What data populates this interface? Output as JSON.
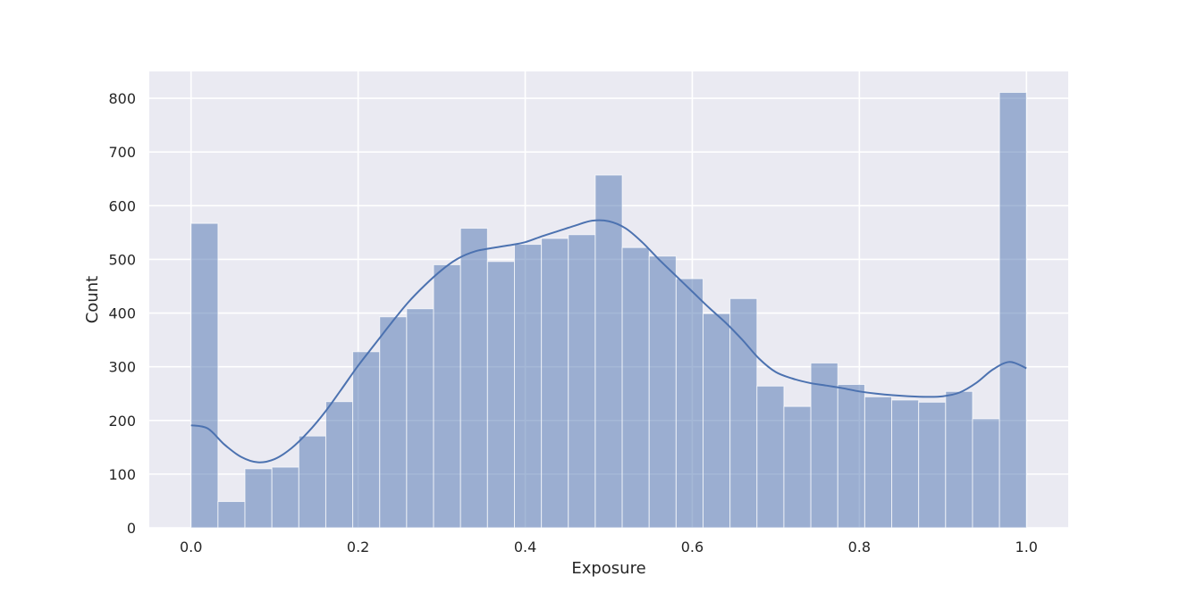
{
  "chart_data": {
    "type": "bar",
    "subtype": "histogram-with-kde",
    "title": "",
    "xlabel": "Exposure",
    "ylabel": "Count",
    "xlim": [
      -0.05,
      1.05
    ],
    "ylim": [
      0,
      850
    ],
    "xticks": [
      0.0,
      0.2,
      0.4,
      0.6,
      0.8,
      1.0
    ],
    "xtick_labels": [
      "0.0",
      "0.2",
      "0.4",
      "0.6",
      "0.8",
      "1.0"
    ],
    "yticks": [
      0,
      100,
      200,
      300,
      400,
      500,
      600,
      700,
      800
    ],
    "ytick_labels": [
      "0",
      "100",
      "200",
      "300",
      "400",
      "500",
      "600",
      "700",
      "800"
    ],
    "grid": true,
    "background": "#EAEAF2",
    "bar_color": "#4C72B0",
    "bar_alpha": 0.5,
    "line_color": "#4C72B0",
    "bins": {
      "start": 0.0,
      "end": 1.0,
      "count": 31,
      "counts": [
        567,
        49,
        110,
        113,
        171,
        235,
        328,
        393,
        408,
        490,
        558,
        496,
        528,
        539,
        546,
        657,
        522,
        506,
        464,
        399,
        427,
        264,
        226,
        307,
        267,
        244,
        238,
        234,
        254,
        203,
        811
      ]
    },
    "kde": {
      "x": [
        0.0,
        0.02,
        0.04,
        0.06,
        0.08,
        0.1,
        0.12,
        0.14,
        0.16,
        0.18,
        0.2,
        0.22,
        0.24,
        0.26,
        0.28,
        0.3,
        0.32,
        0.34,
        0.36,
        0.38,
        0.4,
        0.42,
        0.44,
        0.46,
        0.48,
        0.5,
        0.52,
        0.54,
        0.56,
        0.58,
        0.6,
        0.62,
        0.64,
        0.66,
        0.68,
        0.7,
        0.72,
        0.74,
        0.76,
        0.78,
        0.8,
        0.82,
        0.84,
        0.86,
        0.88,
        0.9,
        0.92,
        0.94,
        0.96,
        0.98,
        1.0
      ],
      "y": [
        191,
        185,
        155,
        132,
        122,
        128,
        148,
        178,
        215,
        258,
        302,
        342,
        382,
        420,
        452,
        480,
        502,
        515,
        521,
        526,
        532,
        543,
        553,
        563,
        572,
        571,
        558,
        532,
        500,
        470,
        440,
        410,
        382,
        350,
        315,
        290,
        278,
        270,
        265,
        260,
        254,
        250,
        247,
        245,
        244,
        245,
        252,
        270,
        295,
        309,
        297
      ]
    }
  }
}
